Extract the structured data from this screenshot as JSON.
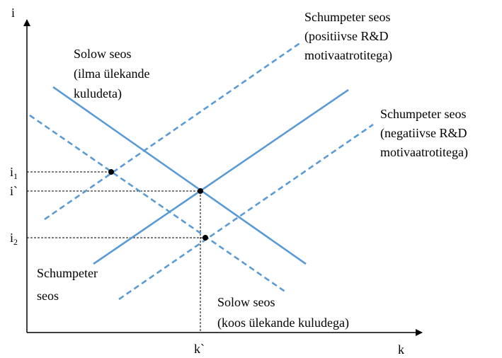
{
  "axes": {
    "y_label": "i",
    "x_label": "k"
  },
  "levels": {
    "i1": {
      "base": "i",
      "sub": "1"
    },
    "i_star": "i`",
    "i2": {
      "base": "i",
      "sub": "2"
    },
    "k_star": "k`"
  },
  "curves": {
    "schumpeter_positive": [
      "Schumpeter seos",
      "(positiivse R&D",
      "motivaatrotitega)"
    ],
    "solow": [
      "Solow seos",
      "(ilma ülekande",
      "kuludeta)"
    ],
    "schumpeter_negative": [
      "Schumpeter seos",
      "(negatiivse R&D",
      "motivaatrotitega)"
    ],
    "schumpeter": [
      "Schumpeter",
      "seos"
    ],
    "solow_costs": [
      "Solow seos",
      "(koos ülekande kuludega)"
    ]
  }
}
